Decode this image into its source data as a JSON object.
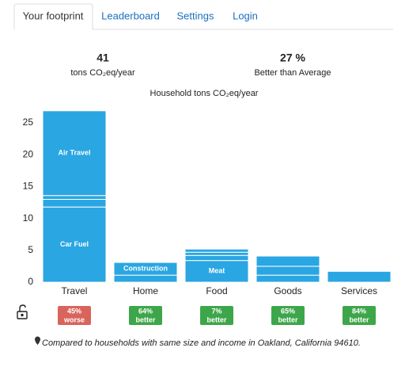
{
  "tabs": [
    "Your footprint",
    "Leaderboard",
    "Settings",
    "Login"
  ],
  "stats": [
    {
      "value": "41",
      "label": "tons CO₂eq/year"
    },
    {
      "value": "27 %",
      "label": "Better than Average"
    }
  ],
  "chart_data": {
    "type": "stacked-bar",
    "title": "Household tons CO₂eq/year",
    "categories": [
      "Travel",
      "Home",
      "Food",
      "Goods",
      "Services"
    ],
    "stacks": [
      [
        {
          "name": "Car Fuel",
          "value": 11.8
        },
        {
          "name": null,
          "value": 1.2
        },
        {
          "name": null,
          "value": 0.6
        },
        {
          "name": "Air Travel",
          "value": 13.3
        }
      ],
      [
        {
          "name": null,
          "value": 1.1
        },
        {
          "name": "Construction",
          "value": 2.0
        }
      ],
      [
        {
          "name": "Meat",
          "value": 3.4
        },
        {
          "name": null,
          "value": 0.8
        },
        {
          "name": null,
          "value": 0.5
        },
        {
          "name": null,
          "value": 0.5
        }
      ],
      [
        {
          "name": null,
          "value": 1.1
        },
        {
          "name": null,
          "value": 1.4
        },
        {
          "name": null,
          "value": 1.6
        }
      ],
      [
        {
          "name": null,
          "value": 1.7
        }
      ]
    ],
    "color": "#2aa6e2",
    "ylim": [
      0,
      27
    ],
    "yticks": [
      0,
      5,
      10,
      15,
      20,
      25
    ]
  },
  "badges": [
    {
      "percent": "45%",
      "text": "worse",
      "color": "#d9645c"
    },
    {
      "percent": "64%",
      "text": "better",
      "color": "#3ea64a"
    },
    {
      "percent": "7%",
      "text": "better",
      "color": "#3ea64a"
    },
    {
      "percent": "65%",
      "text": "better",
      "color": "#3ea64a"
    },
    {
      "percent": "84%",
      "text": "better",
      "color": "#3ea64a"
    }
  ],
  "footnote": "Compared to households with same size and income in Oakland, California 94610."
}
